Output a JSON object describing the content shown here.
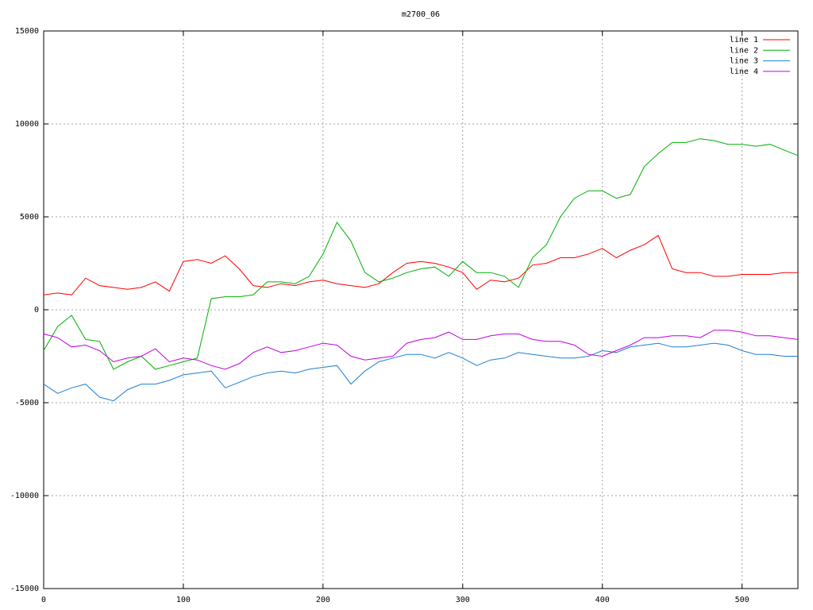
{
  "chart_data": {
    "type": "line",
    "title": "m2700_06",
    "x": [
      0,
      10,
      20,
      30,
      40,
      50,
      60,
      70,
      80,
      90,
      100,
      110,
      120,
      130,
      140,
      150,
      160,
      170,
      180,
      190,
      200,
      210,
      220,
      230,
      240,
      250,
      260,
      270,
      280,
      290,
      300,
      310,
      320,
      330,
      340,
      350,
      360,
      370,
      380,
      390,
      400,
      410,
      420,
      430,
      440,
      450,
      460,
      470,
      480,
      490,
      500,
      510,
      520,
      530,
      540
    ],
    "series": [
      {
        "name": "line 1",
        "color": "#ff0000",
        "values": [
          800,
          900,
          800,
          1700,
          1300,
          1200,
          1100,
          1200,
          1500,
          1000,
          2600,
          2700,
          2500,
          2900,
          2200,
          1300,
          1200,
          1400,
          1300,
          1500,
          1600,
          1400,
          1300,
          1200,
          1400,
          2000,
          2500,
          2600,
          2500,
          2300,
          2000,
          1100,
          1600,
          1500,
          1700,
          2400,
          2500,
          2800,
          2800,
          3000,
          3300,
          2800,
          3200,
          3500,
          4000,
          2200,
          2000,
          2000,
          1800,
          1800,
          1900,
          1900,
          1900,
          2000,
          2000
        ]
      },
      {
        "name": "line 2",
        "color": "#00b000",
        "values": [
          -2200,
          -900,
          -300,
          -1600,
          -1700,
          -3200,
          -2800,
          -2500,
          -3200,
          -3000,
          -2800,
          -2600,
          600,
          700,
          700,
          800,
          1500,
          1500,
          1400,
          1800,
          3000,
          4700,
          3700,
          2000,
          1500,
          1700,
          2000,
          2200,
          2300,
          1800,
          2600,
          2000,
          2000,
          1800,
          1200,
          2800,
          3500,
          5000,
          6000,
          6400,
          6400,
          6000,
          6200,
          7700,
          8400,
          9000,
          9000,
          9200,
          9100,
          8900,
          8900,
          8800,
          8900,
          8600,
          8300
        ]
      },
      {
        "name": "line 3",
        "color": "#1e7fd0",
        "values": [
          -4000,
          -4500,
          -4200,
          -4000,
          -4700,
          -4900,
          -4300,
          -4000,
          -4000,
          -3800,
          -3500,
          -3400,
          -3300,
          -4200,
          -3900,
          -3600,
          -3400,
          -3300,
          -3400,
          -3200,
          -3100,
          -3000,
          -4000,
          -3300,
          -2800,
          -2600,
          -2400,
          -2400,
          -2600,
          -2300,
          -2600,
          -3000,
          -2700,
          -2600,
          -2300,
          -2400,
          -2500,
          -2600,
          -2600,
          -2500,
          -2200,
          -2300,
          -2000,
          -1900,
          -1800,
          -2000,
          -2000,
          -1900,
          -1800,
          -1900,
          -2200,
          -2400,
          -2400,
          -2500,
          -2500
        ]
      },
      {
        "name": "line 4",
        "color": "#c000e0",
        "values": [
          -1300,
          -1500,
          -2000,
          -1900,
          -2200,
          -2800,
          -2600,
          -2500,
          -2100,
          -2800,
          -2600,
          -2700,
          -3000,
          -3200,
          -2900,
          -2300,
          -2000,
          -2300,
          -2200,
          -2000,
          -1800,
          -1900,
          -2500,
          -2700,
          -2600,
          -2500,
          -1800,
          -1600,
          -1500,
          -1200,
          -1600,
          -1600,
          -1400,
          -1300,
          -1300,
          -1600,
          -1700,
          -1700,
          -1900,
          -2400,
          -2500,
          -2200,
          -1900,
          -1500,
          -1500,
          -1400,
          -1400,
          -1500,
          -1100,
          -1100,
          -1200,
          -1400,
          -1400,
          -1500,
          -1600
        ]
      }
    ],
    "xlim": [
      0,
      540
    ],
    "xticks": [
      0,
      100,
      200,
      300,
      400,
      500
    ],
    "ylim": [
      -15000,
      15000
    ],
    "yticks": [
      -15000,
      -10000,
      -5000,
      0,
      5000,
      10000,
      15000
    ],
    "grid": true,
    "legend": "top-right"
  }
}
